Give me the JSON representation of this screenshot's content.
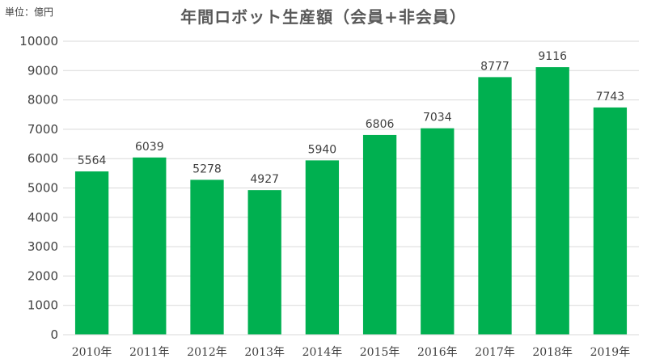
{
  "unit_label": "単位：億円",
  "chart_data": {
    "type": "bar",
    "title": "年間ロボット生産額（会員+非会員）",
    "xlabel": "",
    "ylabel": "",
    "categories": [
      "2010年",
      "2011年",
      "2012年",
      "2013年",
      "2014年",
      "2015年",
      "2016年",
      "2017年",
      "2018年",
      "2019年"
    ],
    "values": [
      5564,
      6039,
      5278,
      4927,
      5940,
      6806,
      7034,
      8777,
      9116,
      7743
    ],
    "ylim": [
      0,
      10000
    ],
    "yticks": [
      0,
      1000,
      2000,
      3000,
      4000,
      5000,
      6000,
      7000,
      8000,
      9000,
      10000
    ],
    "grid": true,
    "legend": "none",
    "bar_color": "#00B050",
    "grid_color": "#D9D9D9"
  }
}
